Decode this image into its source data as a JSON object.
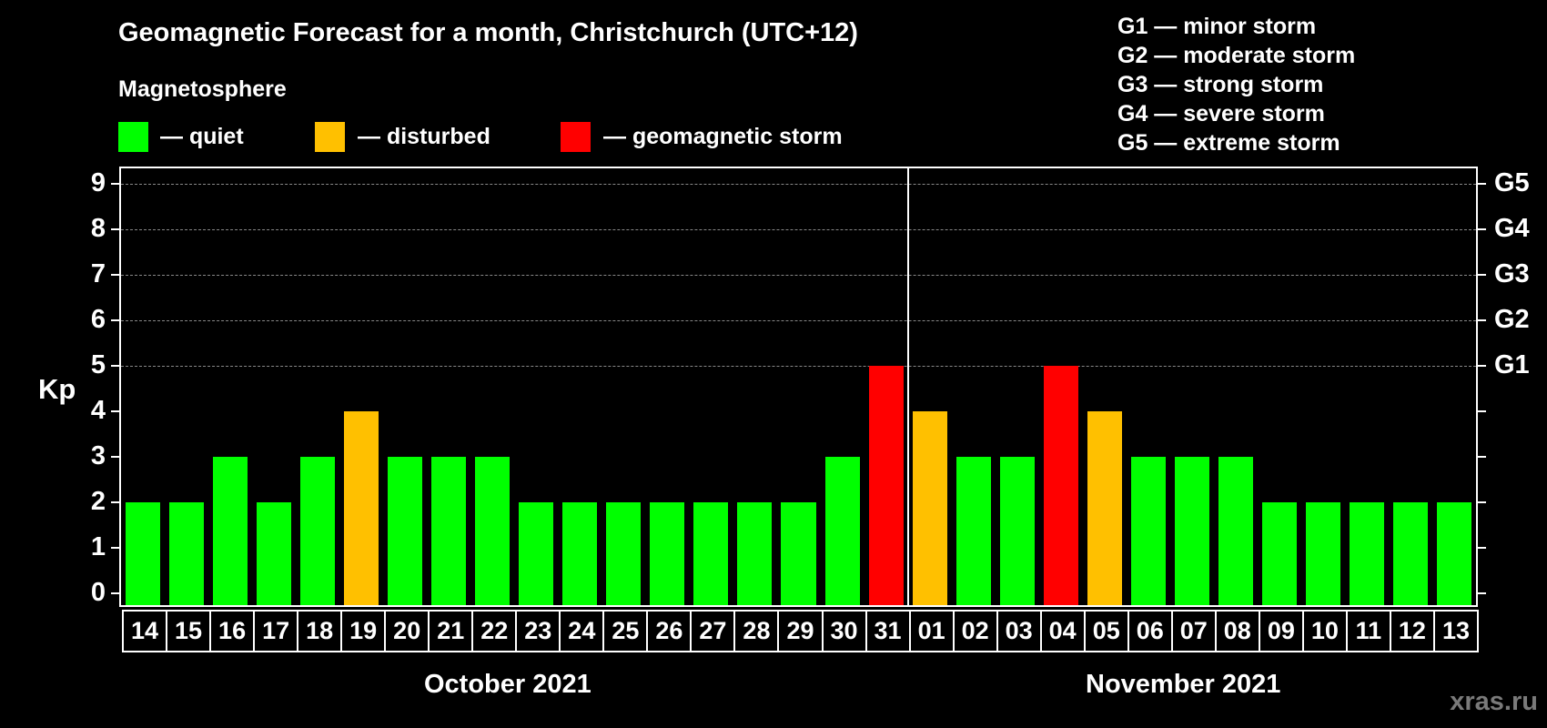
{
  "title": "Geomagnetic Forecast for a month, Christchurch (UTC+12)",
  "subtitle": "Magnetosphere",
  "legend": [
    {
      "label": "— quiet",
      "color": "#00ff00"
    },
    {
      "label": "— disturbed",
      "color": "#ffc000"
    },
    {
      "label": "— geomagnetic storm",
      "color": "#ff0000"
    }
  ],
  "gscale": [
    "G1 — minor storm",
    "G2 — moderate storm",
    "G3 — strong storm",
    "G4 — severe storm",
    "G5 — extreme storm"
  ],
  "watermark": "xras.ru",
  "colors": {
    "quiet": "#00ff00",
    "disturbed": "#ffc000",
    "storm": "#ff0000",
    "background": "#000000",
    "grid": "#888888"
  },
  "chart_data": {
    "type": "bar",
    "title": "Geomagnetic Forecast for a month, Christchurch (UTC+12)",
    "xlabel": "",
    "ylabel": "Kp",
    "ylim": [
      0,
      9
    ],
    "yticks": [
      "0",
      "1",
      "2",
      "3",
      "4",
      "5",
      "6",
      "7",
      "8",
      "9"
    ],
    "right_axis_labels": [
      {
        "kp": 5,
        "label": "G1"
      },
      {
        "kp": 6,
        "label": "G2"
      },
      {
        "kp": 7,
        "label": "G3"
      },
      {
        "kp": 8,
        "label": "G4"
      },
      {
        "kp": 9,
        "label": "G5"
      }
    ],
    "grid": "dashed horizontal lines at Kp 5-9",
    "month_labels": [
      "October 2021",
      "November 2021"
    ],
    "categories": [
      "14",
      "15",
      "16",
      "17",
      "18",
      "19",
      "20",
      "21",
      "22",
      "23",
      "24",
      "25",
      "26",
      "27",
      "28",
      "29",
      "30",
      "31",
      "01",
      "02",
      "03",
      "04",
      "05",
      "06",
      "07",
      "08",
      "09",
      "10",
      "11",
      "12",
      "13"
    ],
    "values": [
      2,
      2,
      3,
      2,
      3,
      4,
      3,
      3,
      3,
      2,
      2,
      2,
      2,
      2,
      2,
      2,
      3,
      5,
      4,
      3,
      3,
      5,
      4,
      3,
      3,
      3,
      2,
      2,
      2,
      2,
      2
    ],
    "status": [
      "quiet",
      "quiet",
      "quiet",
      "quiet",
      "quiet",
      "disturbed",
      "quiet",
      "quiet",
      "quiet",
      "quiet",
      "quiet",
      "quiet",
      "quiet",
      "quiet",
      "quiet",
      "quiet",
      "quiet",
      "storm",
      "disturbed",
      "quiet",
      "quiet",
      "storm",
      "disturbed",
      "quiet",
      "quiet",
      "quiet",
      "quiet",
      "quiet",
      "quiet",
      "quiet",
      "quiet"
    ],
    "legend": [
      "quiet",
      "disturbed",
      "geomagnetic storm"
    ]
  }
}
